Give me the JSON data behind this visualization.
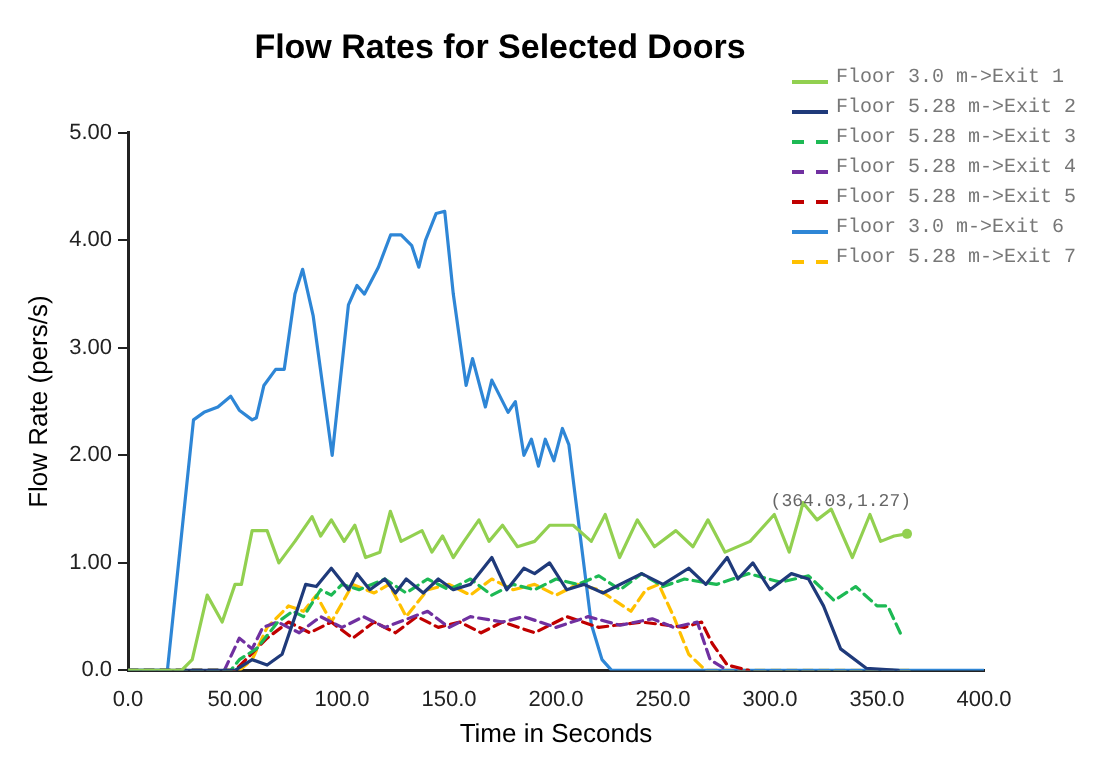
{
  "chart_data": {
    "type": "line",
    "title": "Flow Rates for Selected Doors",
    "xlabel": "Time in Seconds",
    "ylabel": "Flow Rate (pers/s)",
    "xlim": [
      0,
      400
    ],
    "xticks": [
      {
        "value": 0,
        "label": "0.0"
      },
      {
        "value": 50,
        "label": "50.00"
      },
      {
        "value": 100,
        "label": "100.0"
      },
      {
        "value": 150,
        "label": "150.0"
      },
      {
        "value": 200,
        "label": "200.0"
      },
      {
        "value": 250,
        "label": "250.0"
      },
      {
        "value": 300,
        "label": "300.0"
      },
      {
        "value": 350,
        "label": "350.0"
      },
      {
        "value": 400,
        "label": "400.0"
      }
    ],
    "ylim": [
      0,
      5
    ],
    "yticks": [
      {
        "value": 0,
        "label": "0.0"
      },
      {
        "value": 1,
        "label": "1.00"
      },
      {
        "value": 2,
        "label": "2.00"
      },
      {
        "value": 3,
        "label": "3.00"
      },
      {
        "value": 4,
        "label": "4.00"
      },
      {
        "value": 5,
        "label": "5.00"
      }
    ],
    "grid": false,
    "legend": "top right",
    "marker": "none",
    "annotations": [
      {
        "text": "(364.03,1.27)",
        "x": 364.03,
        "y": 1.27
      }
    ],
    "series": [
      {
        "name": "Floor 3.0 m->Exit 1",
        "color": "#92d050",
        "line_style": "solid",
        "x": [
          0,
          25,
          30,
          37,
          44,
          50,
          53,
          58,
          65,
          70.5,
          78,
          86,
          90,
          95,
          101,
          106,
          111,
          117.7,
          122.6,
          127.6,
          137.4,
          142,
          147,
          152,
          157,
          164,
          168.7,
          175,
          182,
          190,
          197,
          208,
          216.5,
          223,
          229.7,
          238,
          246,
          256,
          264,
          271,
          279,
          290.7,
          302,
          309,
          314,
          315.4,
          322,
          328.6,
          338.5,
          346.7,
          351.7,
          358,
          364.03
        ],
        "values": [
          0,
          0,
          0.1,
          0.7,
          0.45,
          0.8,
          0.8,
          1.3,
          1.3,
          1.0,
          1.2,
          1.43,
          1.25,
          1.4,
          1.2,
          1.35,
          1.05,
          1.1,
          1.48,
          1.2,
          1.3,
          1.1,
          1.25,
          1.05,
          1.2,
          1.4,
          1.2,
          1.35,
          1.15,
          1.2,
          1.35,
          1.35,
          1.2,
          1.45,
          1.05,
          1.4,
          1.15,
          1.3,
          1.15,
          1.4,
          1.1,
          1.2,
          1.45,
          1.1,
          1.45,
          1.56,
          1.4,
          1.5,
          1.05,
          1.45,
          1.2,
          1.25,
          1.27
        ]
      },
      {
        "name": "Floor 5.28 m->Exit 2",
        "color": "#1f3a7a",
        "line_style": "solid",
        "x": [
          0,
          50,
          58,
          65,
          72,
          78,
          83,
          88,
          95,
          103,
          107,
          113,
          120,
          125,
          130,
          138,
          145,
          152,
          160,
          170,
          177,
          185,
          190,
          197,
          205,
          213,
          222,
          240,
          250,
          262,
          270,
          280,
          285,
          292,
          300,
          310,
          318,
          325,
          333,
          345,
          360
        ],
        "values": [
          0,
          0,
          0.1,
          0.05,
          0.15,
          0.5,
          0.8,
          0.78,
          0.95,
          0.75,
          0.9,
          0.75,
          0.85,
          0.72,
          0.85,
          0.72,
          0.85,
          0.75,
          0.8,
          1.05,
          0.75,
          0.95,
          0.9,
          1.0,
          0.75,
          0.8,
          0.72,
          0.9,
          0.8,
          0.95,
          0.8,
          1.05,
          0.85,
          1.0,
          0.75,
          0.9,
          0.85,
          0.6,
          0.2,
          0.02,
          0
        ]
      },
      {
        "name": "Floor 5.28 m->Exit 3",
        "color": "#1db954",
        "line_style": "dashed",
        "x": [
          0,
          48,
          52,
          60,
          70,
          77,
          82,
          90,
          95,
          100,
          108,
          120,
          130,
          140,
          150,
          160,
          170,
          180,
          190,
          200,
          210,
          220,
          230,
          240,
          250,
          260,
          275,
          290,
          305,
          318,
          330,
          340,
          350,
          355,
          362
        ],
        "values": [
          0,
          0,
          0.1,
          0.2,
          0.45,
          0.55,
          0.5,
          0.75,
          0.7,
          0.8,
          0.75,
          0.85,
          0.72,
          0.85,
          0.75,
          0.85,
          0.7,
          0.8,
          0.75,
          0.85,
          0.8,
          0.88,
          0.75,
          0.9,
          0.78,
          0.85,
          0.8,
          0.9,
          0.82,
          0.88,
          0.65,
          0.78,
          0.6,
          0.6,
          0.3
        ]
      },
      {
        "name": "Floor 5.28 m->Exit 4",
        "color": "#7030a0",
        "line_style": "dashed",
        "x": [
          0,
          45,
          52,
          58,
          63,
          70,
          80,
          90,
          100,
          110,
          120,
          140,
          150,
          160,
          175,
          185,
          200,
          215,
          230,
          245,
          255,
          266,
          272,
          280
        ],
        "values": [
          0,
          0,
          0.3,
          0.2,
          0.4,
          0.45,
          0.35,
          0.5,
          0.4,
          0.5,
          0.4,
          0.55,
          0.4,
          0.5,
          0.45,
          0.5,
          0.4,
          0.5,
          0.42,
          0.48,
          0.4,
          0.45,
          0.1,
          0
        ]
      },
      {
        "name": "Floor 5.28 m->Exit 5",
        "color": "#c00000",
        "line_style": "dashed",
        "x": [
          0,
          50,
          55,
          65,
          75,
          85,
          95,
          105,
          115,
          125,
          135,
          145,
          155,
          165,
          175,
          190,
          205,
          220,
          240,
          260,
          268,
          273,
          280,
          290
        ],
        "values": [
          0,
          0,
          0.1,
          0.3,
          0.45,
          0.35,
          0.45,
          0.3,
          0.45,
          0.35,
          0.5,
          0.4,
          0.45,
          0.35,
          0.45,
          0.35,
          0.5,
          0.4,
          0.45,
          0.4,
          0.45,
          0.25,
          0.05,
          0
        ]
      },
      {
        "name": "Floor 3.0 m->Exit 6",
        "color": "#2e86d6",
        "line_style": "solid",
        "x": [
          0,
          18.4,
          30.6,
          35.5,
          42,
          48,
          52,
          58,
          60,
          63.5,
          69,
          73,
          78,
          81.6,
          86.5,
          95.4,
          103,
          107,
          110.5,
          117,
          122.7,
          127.6,
          132.6,
          135.9,
          139,
          144,
          148,
          152,
          158,
          161,
          167,
          170,
          177.6,
          181,
          185,
          188.5,
          191.8,
          195,
          199,
          203,
          206,
          208.3,
          216.5,
          221.5,
          226,
          400
        ],
        "values": [
          0,
          0,
          2.33,
          2.4,
          2.45,
          2.55,
          2.42,
          2.33,
          2.35,
          2.65,
          2.8,
          2.8,
          3.5,
          3.73,
          3.3,
          2.0,
          3.4,
          3.58,
          3.5,
          3.75,
          4.05,
          4.05,
          3.95,
          3.75,
          4.0,
          4.25,
          4.27,
          3.5,
          2.65,
          2.9,
          2.45,
          2.7,
          2.4,
          2.5,
          2.0,
          2.15,
          1.9,
          2.15,
          1.95,
          2.25,
          2.1,
          1.73,
          0.43,
          0.1,
          0,
          0
        ]
      },
      {
        "name": "Floor 5.28 m->Exit 7",
        "color": "#ffc000",
        "line_style": "dashed",
        "x": [
          0,
          52,
          58,
          65,
          75,
          82,
          88,
          95,
          105,
          115,
          122,
          130,
          140,
          150,
          160,
          170,
          180,
          190,
          200,
          210,
          220,
          235,
          242,
          248,
          255,
          262,
          270,
          365
        ],
        "values": [
          0,
          0,
          0.1,
          0.4,
          0.6,
          0.55,
          0.7,
          0.45,
          0.8,
          0.72,
          0.8,
          0.5,
          0.75,
          0.8,
          0.7,
          0.85,
          0.75,
          0.8,
          0.7,
          0.8,
          0.75,
          0.55,
          0.75,
          0.8,
          0.5,
          0.15,
          0,
          0
        ]
      }
    ]
  }
}
